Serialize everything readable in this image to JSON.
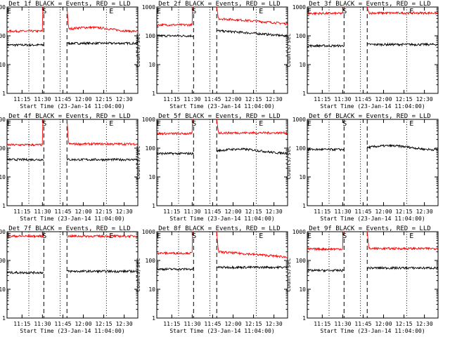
{
  "figure": {
    "panels": [
      {
        "id": "det1f",
        "title": "Det 1f BLACK = Events, RED = LLD"
      },
      {
        "id": "det2f",
        "title": "Det 2f BLACK = Events, RED = LLD"
      },
      {
        "id": "det3f",
        "title": "Det 3f BLACK = Events, RED = LLD"
      },
      {
        "id": "det4f",
        "title": "Det 4f BLACK = Events, RED = LLD"
      },
      {
        "id": "det5f",
        "title": "Det 5f BLACK = Events, RED = LLD"
      },
      {
        "id": "det6f",
        "title": "Det 6f BLACK = Events, RED = LLD"
      },
      {
        "id": "det7f",
        "title": "Det 7f BLACK = Events, RED = LLD"
      },
      {
        "id": "det8f",
        "title": "Det 8f BLACK = Events, RED = LLD"
      },
      {
        "id": "det9f",
        "title": "Det 9f BLACK = Events, RED = LLD"
      }
    ]
  },
  "chart_data": [
    {
      "panel": "det1f",
      "type": "line",
      "title": "Det 1f BLACK = Events, RED = LLD",
      "xlabel": "Start Time (23-Jan-14 11:04:00)",
      "ylabel": "Counts/sec",
      "yscale": "log",
      "ylim": [
        1,
        1000
      ],
      "yticks": [
        "1",
        "10",
        "100",
        "1000"
      ],
      "xticks": [
        "11:15",
        "11:30",
        "11:45",
        "12:00",
        "12:15",
        "12:30"
      ],
      "markers": [
        {
          "label": "E",
          "time": "11:05"
        },
        {
          "label": "S",
          "time": "11:31"
        },
        {
          "label": "E",
          "time": "12:20"
        }
      ],
      "dashed_lines": [
        "11:31",
        "11:48"
      ],
      "dotted_lines": [
        "11:20",
        "11:43",
        "12:17"
      ],
      "gap": [
        "11:31",
        "11:48"
      ],
      "series": [
        {
          "name": "BLACK = Events",
          "color": "#000000",
          "level_before": 48,
          "level_after": 55,
          "style": "flat"
        },
        {
          "name": "RED = LLD",
          "color": "#ff0000",
          "level_before": 145,
          "level_after": 170,
          "style": "hump",
          "saturated_near_gap": true
        }
      ]
    },
    {
      "panel": "det2f",
      "type": "line",
      "title": "Det 2f BLACK = Events, RED = LLD",
      "xlabel": "Start Time (23-Jan-14 11:04:00)",
      "ylabel": "Counts/sec",
      "yscale": "log",
      "ylim": [
        1,
        1000
      ],
      "yticks": [
        "1",
        "10",
        "100",
        "1000"
      ],
      "xticks": [
        "11:15",
        "11:30",
        "11:45",
        "12:00",
        "12:15",
        "12:30"
      ],
      "markers": [
        {
          "label": "E",
          "time": "11:05"
        },
        {
          "label": "S",
          "time": "11:31"
        },
        {
          "label": "E",
          "time": "12:20"
        }
      ],
      "dashed_lines": [
        "11:31",
        "11:48"
      ],
      "dotted_lines": [
        "11:20",
        "11:43",
        "12:17"
      ],
      "gap": [
        "11:31",
        "11:48"
      ],
      "series": [
        {
          "name": "BLACK = Events",
          "color": "#000000",
          "level_before": 100,
          "level_after": 150,
          "style": "decay"
        },
        {
          "name": "RED = LLD",
          "color": "#ff0000",
          "level_before": 240,
          "level_after": 400,
          "style": "decay",
          "saturated_near_gap": true
        }
      ]
    },
    {
      "panel": "det3f",
      "type": "line",
      "title": "Det 3f BLACK = Events, RED = LLD",
      "xlabel": "Start Time (23-Jan-14 11:04:00)",
      "ylabel": "Counts/sec",
      "yscale": "log",
      "ylim": [
        1,
        1000
      ],
      "yticks": [
        "1",
        "10",
        "100",
        "1000"
      ],
      "xticks": [
        "11:15",
        "11:30",
        "11:45",
        "12:00",
        "12:15",
        "12:30"
      ],
      "markers": [
        {
          "label": "E",
          "time": "11:05"
        },
        {
          "label": "S",
          "time": "11:31"
        },
        {
          "label": "E",
          "time": "12:20"
        }
      ],
      "dashed_lines": [
        "11:31",
        "11:48"
      ],
      "dotted_lines": [
        "11:20",
        "11:43",
        "12:17"
      ],
      "gap": [
        "11:31",
        "11:48"
      ],
      "series": [
        {
          "name": "BLACK = Events",
          "color": "#000000",
          "level_before": 45,
          "level_after": 50,
          "style": "flat"
        },
        {
          "name": "RED = LLD",
          "color": "#ff0000",
          "level_before": 600,
          "level_after": 620,
          "style": "flat",
          "saturated_near_gap": true
        }
      ]
    },
    {
      "panel": "det4f",
      "type": "line",
      "title": "Det 4f BLACK = Events, RED = LLD",
      "xlabel": "Start Time (23-Jan-14 11:04:00)",
      "ylabel": "Counts/sec",
      "yscale": "log",
      "ylim": [
        1,
        1000
      ],
      "yticks": [
        "1",
        "10",
        "100",
        "1000"
      ],
      "xticks": [
        "11:15",
        "11:30",
        "11:45",
        "12:00",
        "12:15",
        "12:30"
      ],
      "markers": [
        {
          "label": "E",
          "time": "11:05"
        },
        {
          "label": "S",
          "time": "11:31"
        },
        {
          "label": "E",
          "time": "12:20"
        }
      ],
      "dashed_lines": [
        "11:31",
        "11:48"
      ],
      "dotted_lines": [
        "11:20",
        "11:43",
        "12:17"
      ],
      "gap": [
        "11:31",
        "11:48"
      ],
      "series": [
        {
          "name": "BLACK = Events",
          "color": "#000000",
          "level_before": 40,
          "level_after": 40,
          "style": "flat"
        },
        {
          "name": "RED = LLD",
          "color": "#ff0000",
          "level_before": 130,
          "level_after": 140,
          "style": "flat",
          "saturated_near_gap": true
        }
      ]
    },
    {
      "panel": "det5f",
      "type": "line",
      "title": "Det 5f BLACK = Events, RED = LLD",
      "xlabel": "Start Time (23-Jan-14 11:04:00)",
      "ylabel": "Counts/sec",
      "yscale": "log",
      "ylim": [
        1,
        1000
      ],
      "yticks": [
        "1",
        "10",
        "100",
        "1000"
      ],
      "xticks": [
        "11:15",
        "11:30",
        "11:45",
        "12:00",
        "12:15",
        "12:30"
      ],
      "markers": [
        {
          "label": "E",
          "time": "11:05"
        },
        {
          "label": "S",
          "time": "11:31"
        },
        {
          "label": "E",
          "time": "12:20"
        }
      ],
      "dashed_lines": [
        "11:31",
        "11:48"
      ],
      "dotted_lines": [
        "11:20",
        "11:43",
        "12:17"
      ],
      "gap": [
        "11:31",
        "11:48"
      ],
      "series": [
        {
          "name": "BLACK = Events",
          "color": "#000000",
          "level_before": 65,
          "level_after": 80,
          "style": "hump"
        },
        {
          "name": "RED = LLD",
          "color": "#ff0000",
          "level_before": 320,
          "level_after": 340,
          "style": "flat",
          "saturated_near_gap": true
        }
      ]
    },
    {
      "panel": "det6f",
      "type": "line",
      "title": "Det 6f BLACK = Events, RED = LLD",
      "xlabel": "Start Time (23-Jan-14 11:04:00)",
      "ylabel": "Counts/sec",
      "yscale": "log",
      "ylim": [
        1,
        1000
      ],
      "yticks": [
        "1",
        "10",
        "100",
        "1000"
      ],
      "xticks": [
        "11:15",
        "11:30",
        "11:45",
        "12:00",
        "12:15",
        "12:30"
      ],
      "markers": [
        {
          "label": "E",
          "time": "11:05"
        },
        {
          "label": "S",
          "time": "11:31"
        },
        {
          "label": "E",
          "time": "12:20"
        }
      ],
      "dashed_lines": [
        "11:31",
        "11:48"
      ],
      "dotted_lines": [
        "11:20",
        "11:43",
        "12:17"
      ],
      "gap": [
        "11:31",
        "11:48"
      ],
      "series": [
        {
          "name": "BLACK = Events",
          "color": "#000000",
          "level_before": 90,
          "level_after": 105,
          "style": "hump"
        }
      ]
    },
    {
      "panel": "det7f",
      "type": "line",
      "title": "Det 7f BLACK = Events, RED = LLD",
      "xlabel": "Start Time (23-Jan-14 11:04:00)",
      "ylabel": "Counts/sec",
      "yscale": "log",
      "ylim": [
        1,
        1000
      ],
      "yticks": [
        "1",
        "10",
        "100",
        "1000"
      ],
      "xticks": [
        "11:15",
        "11:30",
        "11:45",
        "12:00",
        "12:15",
        "12:30"
      ],
      "markers": [
        {
          "label": "E",
          "time": "11:05"
        },
        {
          "label": "S",
          "time": "11:31"
        },
        {
          "label": "E",
          "time": "12:20"
        }
      ],
      "dashed_lines": [
        "11:31",
        "11:48"
      ],
      "dotted_lines": [
        "11:20",
        "11:43",
        "12:17"
      ],
      "gap": [
        "11:31",
        "11:48"
      ],
      "series": [
        {
          "name": "BLACK = Events",
          "color": "#000000",
          "level_before": 38,
          "level_after": 42,
          "style": "flat"
        },
        {
          "name": "RED = LLD",
          "color": "#ff0000",
          "level_before": 700,
          "level_after": 700,
          "style": "flat"
        }
      ]
    },
    {
      "panel": "det8f",
      "type": "line",
      "title": "Det 8f BLACK = Events, RED = LLD",
      "xlabel": "Start Time (23-Jan-14 11:04:00)",
      "ylabel": "Counts/sec",
      "yscale": "log",
      "ylim": [
        1,
        1000
      ],
      "yticks": [
        "1",
        "10",
        "100",
        "1000"
      ],
      "xticks": [
        "11:15",
        "11:30",
        "11:45",
        "12:00",
        "12:15",
        "12:30"
      ],
      "markers": [
        {
          "label": "E",
          "time": "11:05"
        },
        {
          "label": "S",
          "time": "11:31"
        },
        {
          "label": "E",
          "time": "12:20"
        }
      ],
      "dashed_lines": [
        "11:31",
        "11:48"
      ],
      "dotted_lines": [
        "11:20",
        "11:43",
        "12:17"
      ],
      "gap": [
        "11:31",
        "11:48"
      ],
      "series": [
        {
          "name": "BLACK = Events",
          "color": "#000000",
          "level_before": 50,
          "level_after": 58,
          "style": "flat"
        },
        {
          "name": "RED = LLD",
          "color": "#ff0000",
          "level_before": 180,
          "level_after": 200,
          "style": "decay",
          "saturated_near_gap": true
        }
      ]
    },
    {
      "panel": "det9f",
      "type": "line",
      "title": "Det 9f BLACK = Events, RED = LLD",
      "xlabel": "Start Time (23-Jan-14 11:04:00)",
      "ylabel": "Counts/sec",
      "yscale": "log",
      "ylim": [
        1,
        1000
      ],
      "yticks": [
        "1",
        "10",
        "100",
        "1000"
      ],
      "xticks": [
        "11:15",
        "11:30",
        "11:45",
        "12:00",
        "12:15",
        "12:30"
      ],
      "markers": [
        {
          "label": "E",
          "time": "11:05"
        },
        {
          "label": "S",
          "time": "11:31"
        },
        {
          "label": "E",
          "time": "12:20"
        }
      ],
      "dashed_lines": [
        "11:31",
        "11:48"
      ],
      "dotted_lines": [
        "11:20",
        "11:43",
        "12:17"
      ],
      "gap": [
        "11:31",
        "11:48"
      ],
      "series": [
        {
          "name": "BLACK = Events",
          "color": "#000000",
          "level_before": 45,
          "level_after": 55,
          "style": "flat"
        },
        {
          "name": "RED = LLD",
          "color": "#ff0000",
          "level_before": 250,
          "level_after": 260,
          "style": "flat",
          "saturated_near_gap": true
        }
      ]
    }
  ]
}
